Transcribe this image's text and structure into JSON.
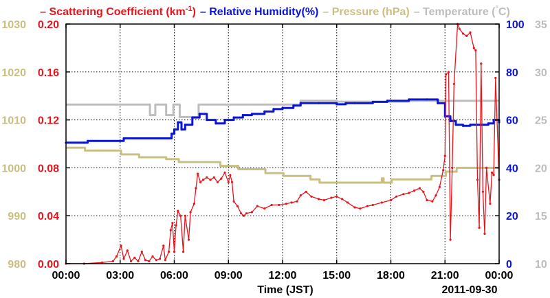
{
  "chart_data": {
    "type": "line",
    "title_parts": [
      {
        "id": "legend-scattering",
        "dash": "–",
        "pre": " Scattering Coefficient (km",
        "sup": "-1",
        "post": ")",
        "color": "#e8141c"
      },
      {
        "id": "legend-humidity",
        "dash": "–",
        "pre": " Relative Humidity(%)",
        "sup": "",
        "post": "",
        "color": "#0a14d8"
      },
      {
        "id": "legend-pressure",
        "dash": "–",
        "pre": " Pressure (hPa)",
        "sup": "",
        "post": "",
        "color": "#c8bf80"
      },
      {
        "id": "legend-temperature",
        "dash": "–",
        "pre": " Temperature (",
        "sup": "°",
        "post": "C)",
        "color": "#bdbdbd"
      }
    ],
    "xlabel": "Time (JST)",
    "date_label": "2011-09-30",
    "x_ticks": [
      "00:00",
      "03:00",
      "06:00",
      "09:00",
      "12:00",
      "15:00",
      "18:00",
      "21:00",
      "00:00"
    ],
    "xlim_hours": [
      0,
      24
    ],
    "axes": {
      "pressure": {
        "ticks": [
          "980",
          "990",
          "1000",
          "1010",
          "1020",
          "1030"
        ],
        "range": [
          980,
          1030
        ],
        "color": "#c8bf80"
      },
      "scattering": {
        "ticks": [
          "0.00",
          "0.04",
          "0.08",
          "0.12",
          "0.16",
          "0.20"
        ],
        "range": [
          0,
          0.2
        ],
        "color": "#e8141c"
      },
      "humidity": {
        "ticks": [
          "0",
          "20",
          "40",
          "60",
          "80",
          "100"
        ],
        "range": [
          0,
          100
        ],
        "color": "#0a14d8"
      },
      "temperature": {
        "ticks": [
          "10",
          "15",
          "20",
          "25",
          "30",
          "35"
        ],
        "range": [
          10,
          35
        ],
        "color": "#bdbdbd"
      }
    },
    "grid": true,
    "series": [
      {
        "id": "temperature",
        "axis": "temperature",
        "color": "#bdbdbd",
        "step": true,
        "marker": false,
        "points": [
          [
            0,
            26.6
          ],
          [
            4.6,
            26.6
          ],
          [
            4.65,
            25.5
          ],
          [
            4.9,
            25.5
          ],
          [
            4.95,
            26.6
          ],
          [
            5.5,
            26.6
          ],
          [
            5.55,
            25.5
          ],
          [
            5.9,
            25.5
          ],
          [
            5.95,
            26.6
          ],
          [
            6.2,
            26.6
          ],
          [
            6.3,
            25.3
          ],
          [
            7.3,
            25.3
          ],
          [
            7.35,
            26.6
          ],
          [
            11.0,
            26.6
          ],
          [
            11.5,
            26.6
          ],
          [
            12.0,
            26.6
          ],
          [
            13.0,
            27.0
          ],
          [
            15.0,
            26.9
          ],
          [
            18.0,
            26.9
          ],
          [
            19.0,
            27.0
          ],
          [
            20.5,
            27.0
          ],
          [
            21.5,
            27.0
          ],
          [
            24,
            27.0
          ]
        ]
      },
      {
        "id": "pressure",
        "axis": "pressure",
        "color": "#c8bf80",
        "step": true,
        "marker": false,
        "points": [
          [
            0,
            1004.2
          ],
          [
            1.0,
            1004.2
          ],
          [
            1.05,
            1003.6
          ],
          [
            3.0,
            1003.6
          ],
          [
            3.05,
            1002.8
          ],
          [
            4.0,
            1002.8
          ],
          [
            4.05,
            1002.2
          ],
          [
            5.5,
            1002.2
          ],
          [
            5.55,
            1001.8
          ],
          [
            6.2,
            1001.8
          ],
          [
            6.25,
            1001.2
          ],
          [
            8.5,
            1001.2
          ],
          [
            8.55,
            1000.4
          ],
          [
            9.5,
            1000.4
          ],
          [
            9.55,
            999.7
          ],
          [
            11.0,
            999.7
          ],
          [
            11.05,
            998.9
          ],
          [
            12.0,
            998.9
          ],
          [
            12.05,
            998.3
          ],
          [
            13.5,
            998.3
          ],
          [
            13.55,
            997.6
          ],
          [
            14.0,
            997.6
          ],
          [
            14.05,
            996.9
          ],
          [
            17.4,
            996.9
          ],
          [
            17.5,
            997.8
          ],
          [
            17.6,
            996.9
          ],
          [
            18.0,
            996.9
          ],
          [
            18.05,
            997.6
          ],
          [
            20.2,
            997.6
          ],
          [
            20.25,
            998.3
          ],
          [
            21.0,
            998.3
          ],
          [
            21.05,
            999.2
          ],
          [
            21.6,
            999.2
          ],
          [
            21.65,
            1000.0
          ],
          [
            24,
            1000.0
          ]
        ]
      },
      {
        "id": "humidity",
        "axis": "humidity",
        "color": "#0a14d8",
        "step": true,
        "marker": true,
        "points": [
          [
            0,
            50.5
          ],
          [
            1.0,
            50.5
          ],
          [
            1.2,
            51.2
          ],
          [
            3.0,
            51.2
          ],
          [
            3.2,
            52.3
          ],
          [
            5.6,
            52.3
          ],
          [
            5.85,
            54.2
          ],
          [
            6.0,
            56
          ],
          [
            6.2,
            59
          ],
          [
            6.4,
            56
          ],
          [
            6.6,
            58
          ],
          [
            7.0,
            61
          ],
          [
            7.4,
            62.5
          ],
          [
            7.8,
            60
          ],
          [
            8.3,
            58.5
          ],
          [
            8.8,
            60
          ],
          [
            9.3,
            61
          ],
          [
            9.8,
            62
          ],
          [
            10.3,
            62.5
          ],
          [
            11.0,
            63.5
          ],
          [
            11.5,
            64.5
          ],
          [
            12.0,
            65
          ],
          [
            12.6,
            66
          ],
          [
            13.0,
            67
          ],
          [
            14.0,
            67
          ],
          [
            15.0,
            66.5
          ],
          [
            15.5,
            67
          ],
          [
            16.0,
            67
          ],
          [
            17.0,
            67.5
          ],
          [
            17.8,
            68
          ],
          [
            19.0,
            68.5
          ],
          [
            20.0,
            68.5
          ],
          [
            20.6,
            67
          ],
          [
            21.0,
            61.5
          ],
          [
            21.3,
            59.5
          ],
          [
            21.6,
            58
          ],
          [
            22.0,
            57.5
          ],
          [
            22.4,
            58
          ],
          [
            23.0,
            58
          ],
          [
            23.4,
            58.5
          ],
          [
            23.7,
            60
          ],
          [
            24,
            59
          ]
        ]
      },
      {
        "id": "scattering",
        "axis": "scattering",
        "color": "#e8141c",
        "step": false,
        "marker": true,
        "points": [
          [
            0,
            0.0
          ],
          [
            1.0,
            0.0
          ],
          [
            2.0,
            0.001
          ],
          [
            2.6,
            0.002
          ],
          [
            2.8,
            0.006
          ],
          [
            3.05,
            0.015
          ],
          [
            3.2,
            0.004
          ],
          [
            3.4,
            0.011
          ],
          [
            3.6,
            0.002
          ],
          [
            3.8,
            0.005
          ],
          [
            4.0,
            0.002
          ],
          [
            4.2,
            0.01
          ],
          [
            4.4,
            0.003
          ],
          [
            4.6,
            0.002
          ],
          [
            4.8,
            0.006
          ],
          [
            5.0,
            0.003
          ],
          [
            5.2,
            0.004
          ],
          [
            5.4,
            0.015
          ],
          [
            5.5,
            0.003
          ],
          [
            5.7,
            0.01
          ],
          [
            5.8,
            0.028
          ],
          [
            5.9,
            0.034
          ],
          [
            6.0,
            0.01
          ],
          [
            6.1,
            0.032
          ],
          [
            6.2,
            0.044
          ],
          [
            6.35,
            0.04
          ],
          [
            6.5,
            0.01
          ],
          [
            6.6,
            0.04
          ],
          [
            6.8,
            0.02
          ],
          [
            6.9,
            0.043
          ],
          [
            7.1,
            0.05
          ],
          [
            7.2,
            0.063
          ],
          [
            7.3,
            0.075
          ],
          [
            7.45,
            0.068
          ],
          [
            7.6,
            0.07
          ],
          [
            7.8,
            0.072
          ],
          [
            8.0,
            0.07
          ],
          [
            8.2,
            0.072
          ],
          [
            8.4,
            0.068
          ],
          [
            8.6,
            0.071
          ],
          [
            8.8,
            0.076
          ],
          [
            9.0,
            0.068
          ],
          [
            9.1,
            0.074
          ],
          [
            9.2,
            0.068
          ],
          [
            9.3,
            0.052
          ],
          [
            9.5,
            0.048
          ],
          [
            9.7,
            0.042
          ],
          [
            9.85,
            0.04
          ],
          [
            10.0,
            0.042
          ],
          [
            10.3,
            0.043
          ],
          [
            10.6,
            0.048
          ],
          [
            11.0,
            0.046
          ],
          [
            11.4,
            0.049
          ],
          [
            11.8,
            0.049
          ],
          [
            12.2,
            0.05
          ],
          [
            12.5,
            0.051
          ],
          [
            12.8,
            0.052
          ],
          [
            13.0,
            0.057
          ],
          [
            13.3,
            0.06
          ],
          [
            13.6,
            0.056
          ],
          [
            14.0,
            0.054
          ],
          [
            14.3,
            0.053
          ],
          [
            14.7,
            0.055
          ],
          [
            15.0,
            0.056
          ],
          [
            15.3,
            0.054
          ],
          [
            15.6,
            0.051
          ],
          [
            16.0,
            0.047
          ],
          [
            16.3,
            0.046
          ],
          [
            16.7,
            0.048
          ],
          [
            17.0,
            0.049
          ],
          [
            17.5,
            0.051
          ],
          [
            18.0,
            0.053
          ],
          [
            18.3,
            0.056
          ],
          [
            18.7,
            0.058
          ],
          [
            19.0,
            0.059
          ],
          [
            19.3,
            0.061
          ],
          [
            19.6,
            0.063
          ],
          [
            19.8,
            0.06
          ],
          [
            20.0,
            0.053
          ],
          [
            20.3,
            0.052
          ],
          [
            20.5,
            0.057
          ],
          [
            20.7,
            0.064
          ],
          [
            20.9,
            0.078
          ],
          [
            21.0,
            0.09
          ],
          [
            21.05,
            0.158
          ],
          [
            21.2,
            0.16
          ],
          [
            21.3,
            0.02
          ],
          [
            21.4,
            0.08
          ],
          [
            21.5,
            0.15
          ],
          [
            21.7,
            0.2
          ],
          [
            21.8,
            0.196
          ],
          [
            22.0,
            0.192
          ],
          [
            22.2,
            0.19
          ],
          [
            22.4,
            0.193
          ],
          [
            22.6,
            0.18
          ],
          [
            22.7,
            0.178
          ],
          [
            22.8,
            0.07
          ],
          [
            22.9,
            0.03
          ],
          [
            23.0,
            0.167
          ],
          [
            23.1,
            0.06
          ],
          [
            23.2,
            0.025
          ],
          [
            23.3,
            0.08
          ],
          [
            23.5,
            0.05
          ],
          [
            23.6,
            0.076
          ],
          [
            23.7,
            0.074
          ],
          [
            23.8,
            0.155
          ],
          [
            24.0,
            0.07
          ]
        ]
      }
    ]
  }
}
